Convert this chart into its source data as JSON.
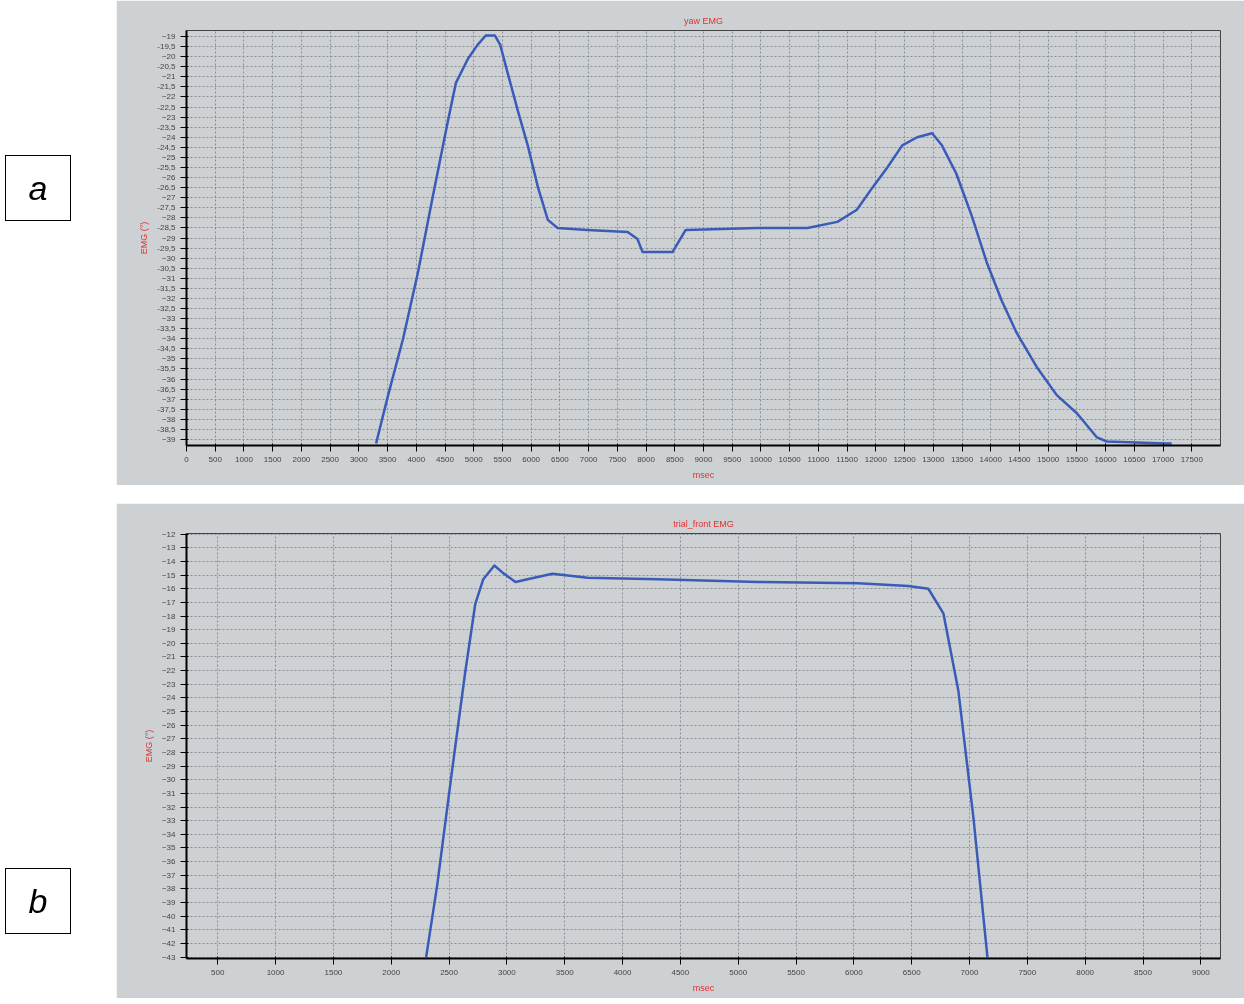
{
  "chart_data": [
    {
      "type": "line",
      "title": "yaw EMG",
      "xlabel": "msec",
      "ylabel": "EMG (°)",
      "annotations": [
        "a"
      ],
      "grid": true,
      "marker": "none",
      "line_style": "solid",
      "xlim": [
        0,
        18000
      ],
      "ylim": [
        -39.3,
        -18.7
      ],
      "xticks": [
        0,
        500,
        1000,
        1500,
        2000,
        2500,
        3000,
        3500,
        4000,
        4500,
        5000,
        5500,
        6000,
        6500,
        7000,
        7500,
        8000,
        8500,
        9000,
        9500,
        10000,
        10500,
        11000,
        11500,
        12000,
        12500,
        13000,
        13500,
        14000,
        14500,
        15000,
        15500,
        16000,
        16500,
        17000,
        17500
      ],
      "yticks": [
        -19,
        {
          "value": -19.5,
          "label": "-19,5"
        },
        -20,
        {
          "value": -20.5,
          "label": "-20,5"
        },
        -21,
        {
          "value": -21.5,
          "label": "-21,5"
        },
        -22,
        {
          "value": -22.5,
          "label": "-22,5"
        },
        -23,
        {
          "value": -23.5,
          "label": "-23,5"
        },
        -24,
        {
          "value": -24.5,
          "label": "-24,5"
        },
        -25,
        {
          "value": -25.5,
          "label": "-25,5"
        },
        -26,
        {
          "value": -26.5,
          "label": "-26,5"
        },
        -27,
        {
          "value": -27.5,
          "label": "-27,5"
        },
        -28,
        {
          "value": -28.5,
          "label": "-28,5"
        },
        -29,
        {
          "value": -29.5,
          "label": "-29,5"
        },
        -30,
        {
          "value": -30.5,
          "label": "-30,5"
        },
        -31,
        {
          "value": -31.5,
          "label": "-31,5"
        },
        -32,
        {
          "value": -32.5,
          "label": "-32,5"
        },
        -33,
        {
          "value": -33.5,
          "label": "-33,5"
        },
        -34,
        {
          "value": -34.5,
          "label": "-34,5"
        },
        -35,
        {
          "value": -35.5,
          "label": "-35,5"
        },
        -36,
        {
          "value": -36.5,
          "label": "-36,5"
        },
        -37,
        {
          "value": -37.5,
          "label": "-37,5"
        },
        -38,
        {
          "value": -38.5,
          "label": "-38,5"
        },
        -39
      ],
      "series": [
        {
          "color": "#3a5bb8",
          "x": [
            3300,
            3510,
            3770,
            4030,
            4290,
            4550,
            4690,
            4900,
            5070,
            5210,
            5370,
            5460,
            5590,
            5770,
            5940,
            6120,
            6290,
            6460,
            6980,
            7680,
            7850,
            7940,
            8460,
            8690,
            9940,
            10810,
            11330,
            11670,
            11940,
            12200,
            12460,
            12720,
            12980,
            13150,
            13400,
            13670,
            13930,
            14190,
            14450,
            14800,
            15150,
            15500,
            15850,
            16020,
            17060,
            17150
          ],
          "values": [
            -39.2,
            -36.8,
            -34.0,
            -30.7,
            -26.9,
            -23.2,
            -21.3,
            -20.1,
            -19.4,
            -18.95,
            -18.95,
            -19.4,
            -20.8,
            -22.7,
            -24.4,
            -26.5,
            -28.1,
            -28.5,
            -28.6,
            -28.7,
            -29.05,
            -29.7,
            -29.7,
            -28.6,
            -28.5,
            -28.5,
            -28.2,
            -27.6,
            -26.5,
            -25.5,
            -24.4,
            -24.0,
            -23.8,
            -24.4,
            -25.8,
            -27.9,
            -30.2,
            -32.1,
            -33.7,
            -35.4,
            -36.8,
            -37.7,
            -38.9,
            -39.1,
            -39.2,
            -39.2
          ]
        }
      ]
    },
    {
      "type": "line",
      "title": "trial_front EMG",
      "xlabel": "msec",
      "ylabel": "EMG (°)",
      "annotations": [
        "b"
      ],
      "grid": true,
      "marker": "none",
      "line_style": "solid",
      "xlim": [
        230,
        9170
      ],
      "ylim": [
        -43.1,
        -11.95
      ],
      "xticks": [
        500,
        1000,
        1500,
        2000,
        2500,
        3000,
        3500,
        4000,
        4500,
        5000,
        5500,
        6000,
        6500,
        7000,
        7500,
        8000,
        8500,
        9000
      ],
      "yticks": [
        -12,
        -13,
        -14,
        -15,
        -16,
        -17,
        -18,
        -19,
        -20,
        -21,
        -22,
        -23,
        -24,
        -25,
        -26,
        -27,
        -28,
        -29,
        -30,
        -31,
        -32,
        -33,
        -34,
        -35,
        -36,
        -37,
        -38,
        -39,
        -40,
        -41,
        -42,
        -43
      ],
      "series": [
        {
          "color": "#3a5bb8",
          "x": [
            2302,
            2398,
            2528,
            2640,
            2727,
            2796,
            2892,
            2961,
            3074,
            3178,
            3394,
            3698,
            4304,
            5171,
            6037,
            6470,
            6644,
            6774,
            6904,
            7034,
            7155
          ],
          "values": [
            -43.0,
            -37.7,
            -29.2,
            -22.1,
            -17.1,
            -15.3,
            -14.3,
            -14.8,
            -15.5,
            -15.3,
            -14.9,
            -15.2,
            -15.3,
            -15.5,
            -15.6,
            -15.8,
            -16.0,
            -17.8,
            -23.5,
            -32.8,
            -43.0
          ]
        }
      ]
    }
  ]
}
